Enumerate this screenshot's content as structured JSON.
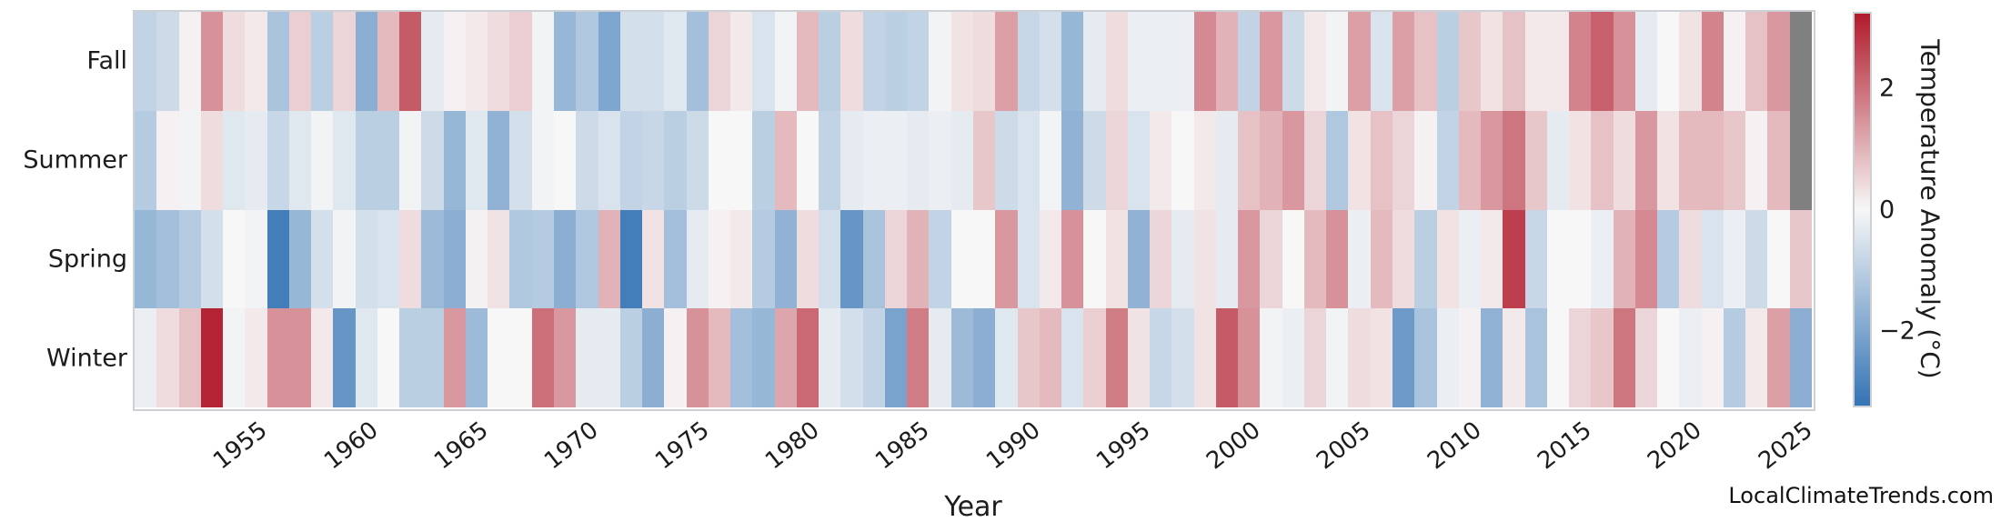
{
  "watermark": "LocalClimateTrends.com",
  "chart_data": {
    "type": "heatmap",
    "title": "",
    "xlabel": "Year",
    "ylabel": "",
    "rows": [
      "Fall",
      "Summer",
      "Spring",
      "Winter"
    ],
    "x": [
      1950,
      1951,
      1952,
      1953,
      1954,
      1955,
      1956,
      1957,
      1958,
      1959,
      1960,
      1961,
      1962,
      1963,
      1964,
      1965,
      1966,
      1967,
      1968,
      1969,
      1970,
      1971,
      1972,
      1973,
      1974,
      1975,
      1976,
      1977,
      1978,
      1979,
      1980,
      1981,
      1982,
      1983,
      1984,
      1985,
      1986,
      1987,
      1988,
      1989,
      1990,
      1991,
      1992,
      1993,
      1994,
      1995,
      1996,
      1997,
      1998,
      1999,
      2000,
      2001,
      2002,
      2003,
      2004,
      2005,
      2006,
      2007,
      2008,
      2009,
      2010,
      2011,
      2012,
      2013,
      2014,
      2015,
      2016,
      2017,
      2018,
      2019,
      2020,
      2021,
      2022,
      2023,
      2024,
      2025
    ],
    "xticks": [
      1955,
      1960,
      1965,
      1970,
      1975,
      1980,
      1985,
      1990,
      1995,
      2000,
      2005,
      2010,
      2015,
      2020,
      2025
    ],
    "series": [
      {
        "name": "Fall",
        "values": [
          -0.9,
          -0.7,
          0.1,
          1.5,
          0.4,
          0.2,
          -1.3,
          0.6,
          -1.0,
          0.5,
          -1.8,
          0.9,
          2.3,
          -0.3,
          0.1,
          0.2,
          0.4,
          0.6,
          -0.1,
          -1.6,
          -1.2,
          -2.0,
          -0.6,
          -0.6,
          -0.4,
          -1.4,
          0.5,
          0.2,
          -0.5,
          -0.1,
          0.9,
          -1.0,
          0.4,
          -0.9,
          -1.0,
          -0.9,
          -0.1,
          0.3,
          0.4,
          1.3,
          -0.8,
          -0.6,
          -1.6,
          -0.3,
          0.4,
          -0.2,
          -0.2,
          -0.2,
          1.6,
          1.0,
          -0.9,
          1.4,
          -0.7,
          0.2,
          -0.1,
          1.3,
          -0.5,
          1.3,
          0.8,
          -1.0,
          0.7,
          0.3,
          0.8,
          0.2,
          0.2,
          1.7,
          2.2,
          1.5,
          -0.3,
          0.0,
          0.3,
          1.7,
          0.1,
          0.8,
          1.4,
          null
        ]
      },
      {
        "name": "Summer",
        "values": [
          -1.1,
          0.1,
          -0.1,
          0.4,
          -0.4,
          -0.3,
          -0.8,
          -0.4,
          -0.1,
          -0.4,
          -1.0,
          -1.0,
          -0.1,
          -0.7,
          -1.6,
          -0.4,
          -1.7,
          -0.6,
          -0.1,
          0.0,
          -0.7,
          -0.5,
          -0.9,
          -0.8,
          -1.0,
          -0.7,
          0.0,
          0.0,
          -1.0,
          0.9,
          0.0,
          -0.9,
          -0.3,
          -0.2,
          -0.2,
          -0.3,
          -0.2,
          -0.3,
          0.7,
          -0.7,
          -0.5,
          -0.1,
          -1.7,
          -0.7,
          0.5,
          -0.5,
          0.2,
          0.0,
          0.2,
          -0.3,
          0.8,
          1.0,
          1.4,
          0.5,
          -1.2,
          0.3,
          0.8,
          0.5,
          0.1,
          -0.9,
          0.9,
          1.4,
          1.9,
          0.7,
          -0.3,
          0.3,
          0.8,
          0.4,
          1.4,
          0.3,
          0.9,
          0.9,
          0.7,
          0.1,
          0.9,
          null
        ]
      },
      {
        "name": "Spring",
        "values": [
          -1.6,
          -1.4,
          -1.1,
          -0.6,
          0.0,
          -0.1,
          -3.0,
          -1.6,
          -0.6,
          -0.1,
          -0.6,
          -0.5,
          0.4,
          -1.5,
          -1.8,
          0.1,
          0.3,
          -1.2,
          -1.1,
          -1.8,
          -1.2,
          1.0,
          -3.0,
          0.3,
          -1.4,
          -0.3,
          0.1,
          0.2,
          -1.1,
          -1.7,
          0.4,
          -0.6,
          -2.4,
          -1.3,
          0.5,
          1.0,
          -0.9,
          0.0,
          0.0,
          1.4,
          -0.5,
          0.2,
          1.5,
          0.0,
          0.3,
          -1.7,
          0.5,
          -0.3,
          0.3,
          -0.3,
          1.4,
          0.5,
          0.0,
          0.9,
          1.5,
          -0.2,
          0.9,
          0.4,
          -1.0,
          0.3,
          -0.2,
          0.2,
          2.7,
          -0.8,
          0.0,
          0.0,
          -0.2,
          1.0,
          1.6,
          -1.1,
          0.4,
          -0.5,
          -0.2,
          -0.7,
          0.0,
          0.7
        ]
      },
      {
        "name": "Winter",
        "values": [
          -0.2,
          0.4,
          0.8,
          3.1,
          -0.1,
          0.2,
          1.5,
          1.5,
          0.2,
          -2.4,
          -0.4,
          0.0,
          -1.0,
          -1.0,
          1.4,
          -1.5,
          0.0,
          0.0,
          2.0,
          1.4,
          -0.3,
          -0.3,
          -1.0,
          -1.8,
          0.1,
          1.5,
          0.9,
          -1.4,
          -1.6,
          1.2,
          2.1,
          -0.3,
          -0.6,
          -0.9,
          -2.1,
          1.8,
          -0.3,
          -1.5,
          -1.8,
          -0.4,
          0.7,
          0.9,
          -0.5,
          0.6,
          1.8,
          0.3,
          -0.8,
          -0.6,
          0.3,
          2.3,
          1.5,
          -0.1,
          -0.2,
          0.5,
          -0.1,
          0.4,
          0.3,
          -2.3,
          -1.3,
          -0.2,
          0.1,
          -1.7,
          0.2,
          -1.3,
          0.0,
          0.5,
          0.7,
          1.9,
          0.5,
          0.0,
          -0.2,
          0.1,
          -1.1,
          0.2,
          1.3,
          -1.8
        ]
      }
    ],
    "colorbar": {
      "label": "Temperature Anomaly (°C)",
      "ticks": [
        2,
        0,
        -2
      ],
      "tick_labels": [
        "2",
        "0",
        "−2"
      ],
      "vmin": -3.25,
      "vmax": 3.25,
      "color_positive": "#b11a2b",
      "color_center": "#f7f7f7",
      "color_negative": "#3474b5",
      "color_missing": "#808080",
      "position": "right"
    },
    "grid": false,
    "legend": "none"
  }
}
